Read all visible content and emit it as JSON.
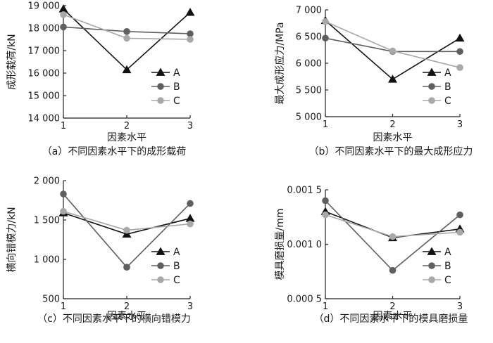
{
  "colors": {
    "A": "#111111",
    "B": "#5f5f5f",
    "C": "#a8a8a8",
    "axis": "#222222"
  },
  "chart_data": [
    {
      "type": "line",
      "caption": "（a）不同因素水平下的成形载荷",
      "xlabel": "因素水平",
      "ylabel": "成形载荷/kN",
      "x": [
        1,
        2,
        3
      ],
      "xticks": [
        "1",
        "2",
        "3"
      ],
      "ylim": [
        14000,
        19000
      ],
      "yticks": [
        14000,
        15000,
        16000,
        17000,
        18000,
        19000
      ],
      "ytick_labels": [
        "14 000",
        "15 000",
        "16 000",
        "17 000",
        "18 000",
        "19 000"
      ],
      "legend": [
        "A",
        "B",
        "C"
      ],
      "legend_position": "right",
      "series": [
        {
          "name": "A",
          "values": [
            18850,
            16150,
            18700
          ]
        },
        {
          "name": "B",
          "values": [
            18050,
            17850,
            17750
          ]
        },
        {
          "name": "C",
          "values": [
            18600,
            17550,
            17500
          ]
        }
      ]
    },
    {
      "type": "line",
      "caption": "（b）不同因素水平下的最大成形应力",
      "xlabel": "因素水平",
      "ylabel": "最大成形应力/MPa",
      "x": [
        1,
        2,
        3
      ],
      "xticks": [
        "1",
        "2",
        "3"
      ],
      "ylim": [
        5000,
        7000
      ],
      "yticks": [
        5000,
        5500,
        6000,
        6500,
        7000
      ],
      "ytick_labels": [
        "5 000",
        "5 500",
        "6 000",
        "6 500",
        "7 000"
      ],
      "legend": [
        "A",
        "B",
        "C"
      ],
      "legend_position": "right",
      "series": [
        {
          "name": "A",
          "values": [
            6800,
            5700,
            6470
          ]
        },
        {
          "name": "B",
          "values": [
            6470,
            6220,
            6220
          ]
        },
        {
          "name": "C",
          "values": [
            6780,
            6230,
            5920
          ]
        }
      ]
    },
    {
      "type": "line",
      "caption": "（c）不同因素水平下的横向错模力",
      "xlabel": "因素水平",
      "ylabel": "横向错模力/kN",
      "x": [
        1,
        2,
        3
      ],
      "xticks": [
        "1",
        "2",
        "3"
      ],
      "ylim": [
        500,
        2000
      ],
      "yticks": [
        500,
        1000,
        1500,
        2000
      ],
      "ytick_labels": [
        "500",
        "1 000",
        "1 500",
        "2 000"
      ],
      "legend": [
        "A",
        "B",
        "C"
      ],
      "legend_position": "right",
      "series": [
        {
          "name": "A",
          "values": [
            1590,
            1320,
            1520
          ]
        },
        {
          "name": "B",
          "values": [
            1830,
            900,
            1710
          ]
        },
        {
          "name": "C",
          "values": [
            1610,
            1370,
            1450
          ]
        }
      ]
    },
    {
      "type": "line",
      "caption": "（d）不同因素水平下的模具磨损量",
      "xlabel": "因素水平",
      "ylabel": "模具磨损量/mm",
      "x": [
        1,
        2,
        3
      ],
      "xticks": [
        "1",
        "2",
        "3"
      ],
      "ylim": [
        0.0005,
        0.0015
      ],
      "yticks": [
        0.0005,
        0.001,
        0.0015
      ],
      "ytick_labels": [
        "0.000 5",
        "0.001 0",
        "0.001 5"
      ],
      "legend": [
        "A",
        "B",
        "C"
      ],
      "legend_position": "right",
      "series": [
        {
          "name": "A",
          "values": [
            0.0013,
            0.00106,
            0.00114
          ]
        },
        {
          "name": "B",
          "values": [
            0.0014,
            0.00076,
            0.00127
          ]
        },
        {
          "name": "C",
          "values": [
            0.00127,
            0.00107,
            0.00111
          ]
        }
      ]
    }
  ]
}
